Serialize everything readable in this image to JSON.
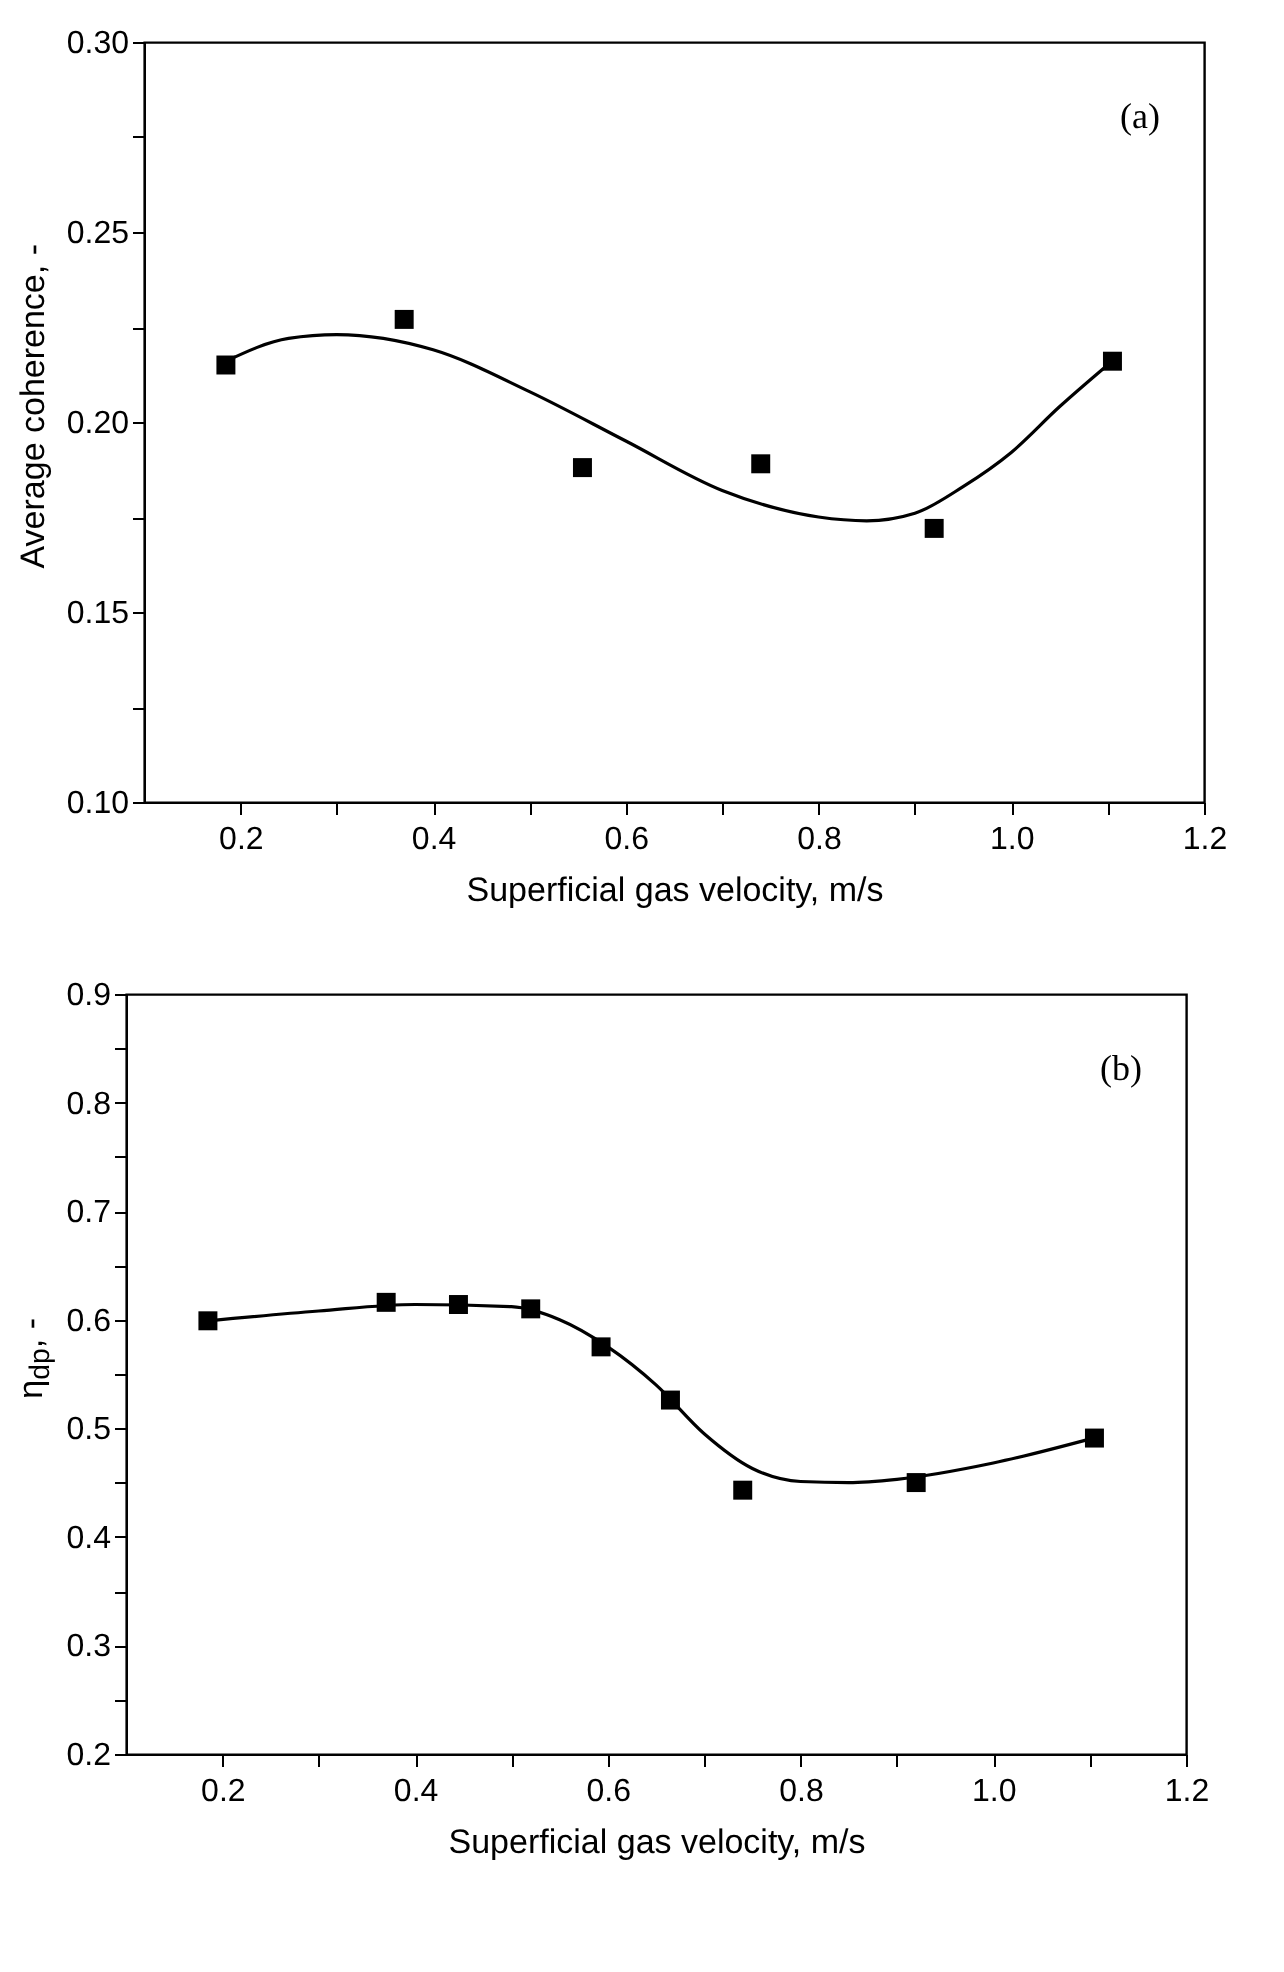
{
  "chart_data": [
    {
      "type": "scatter",
      "xlabel": "Superficial gas velocity, m/s",
      "ylabel": "Average coherence, -",
      "annotations": [
        "(a)"
      ],
      "xlim": [
        0.1,
        1.2
      ],
      "xticks": [
        0.2,
        {
          "value": 0.3,
          "label": null
        },
        0.4,
        {
          "value": 0.5,
          "label": null
        },
        0.6,
        {
          "value": 0.7,
          "label": null
        },
        0.8,
        {
          "value": 0.9,
          "label": null
        },
        {
          "value": 1,
          "label": "1.0"
        },
        {
          "value": 1.1,
          "label": null
        },
        1.2
      ],
      "ylim": [
        0.1,
        0.3
      ],
      "yticks": [
        {
          "value": 0.1,
          "label": "0.10"
        },
        {
          "value": 0.125,
          "label": null
        },
        0.15,
        {
          "value": 0.175,
          "label": null
        },
        {
          "value": 0.2,
          "label": "0.20"
        },
        {
          "value": 0.225,
          "label": null
        },
        0.25,
        {
          "value": 0.275,
          "label": null
        },
        {
          "value": 0.3,
          "label": "0.30"
        }
      ],
      "series": [
        {
          "type": "scatter",
          "marker": "square",
          "color": "#000000",
          "x": [
            0.185,
            0.37,
            0.555,
            0.74,
            0.92,
            1.105
          ],
          "values": [
            0.215,
            0.227,
            0.188,
            0.189,
            0.172,
            0.216
          ]
        },
        {
          "type": "line",
          "color": "#000000",
          "x": [
            0.185,
            0.25,
            0.3,
            0.4,
            0.5,
            0.6,
            0.7,
            0.8,
            0.85,
            0.9,
            0.95,
            1.0,
            1.05,
            1.1
          ],
          "values": [
            0.216,
            0.222,
            0.223,
            0.219,
            0.208,
            0.195,
            0.182,
            0.175,
            0.174,
            0.176,
            0.183,
            0.192,
            0.204,
            0.215
          ]
        }
      ]
    },
    {
      "type": "scatter",
      "xlabel": "Superficial gas velocity, m/s",
      "ylabel": "η$_{dp}$, -",
      "annotations": [
        "(b)"
      ],
      "xlim": [
        0.1,
        1.2
      ],
      "xticks": [
        0.2,
        {
          "value": 0.3,
          "label": null
        },
        0.4,
        {
          "value": 0.5,
          "label": null
        },
        0.6,
        {
          "value": 0.7,
          "label": null
        },
        0.8,
        {
          "value": 0.9,
          "label": null
        },
        {
          "value": 1,
          "label": "1.0"
        },
        {
          "value": 1.1,
          "label": null
        },
        1.2
      ],
      "ylim": [
        0.2,
        0.9
      ],
      "yticks": [
        0.2,
        {
          "value": 0.25,
          "label": null
        },
        0.3,
        {
          "value": 0.35,
          "label": null
        },
        0.4,
        {
          "value": 0.45,
          "label": null
        },
        0.5,
        {
          "value": 0.55,
          "label": null
        },
        0.6,
        {
          "value": 0.65,
          "label": null
        },
        0.7,
        {
          "value": 0.75,
          "label": null
        },
        0.8,
        {
          "value": 0.85,
          "label": null
        },
        0.9
      ],
      "series": [
        {
          "type": "scatter",
          "marker": "square",
          "color": "#000000",
          "x": [
            0.185,
            0.37,
            0.445,
            0.52,
            0.593,
            0.665,
            0.74,
            0.92,
            1.105
          ],
          "values": [
            0.599,
            0.616,
            0.614,
            0.61,
            0.575,
            0.526,
            0.443,
            0.45,
            0.491
          ]
        },
        {
          "type": "line",
          "color": "#000000",
          "x": [
            0.185,
            0.3,
            0.4,
            0.5,
            0.55,
            0.6,
            0.65,
            0.7,
            0.75,
            0.8,
            0.85,
            0.9,
            1.0,
            1.1
          ],
          "values": [
            0.599,
            0.608,
            0.614,
            0.612,
            0.6,
            0.575,
            0.54,
            0.495,
            0.463,
            0.451,
            0.45,
            0.453,
            0.468,
            0.49
          ]
        }
      ]
    }
  ]
}
